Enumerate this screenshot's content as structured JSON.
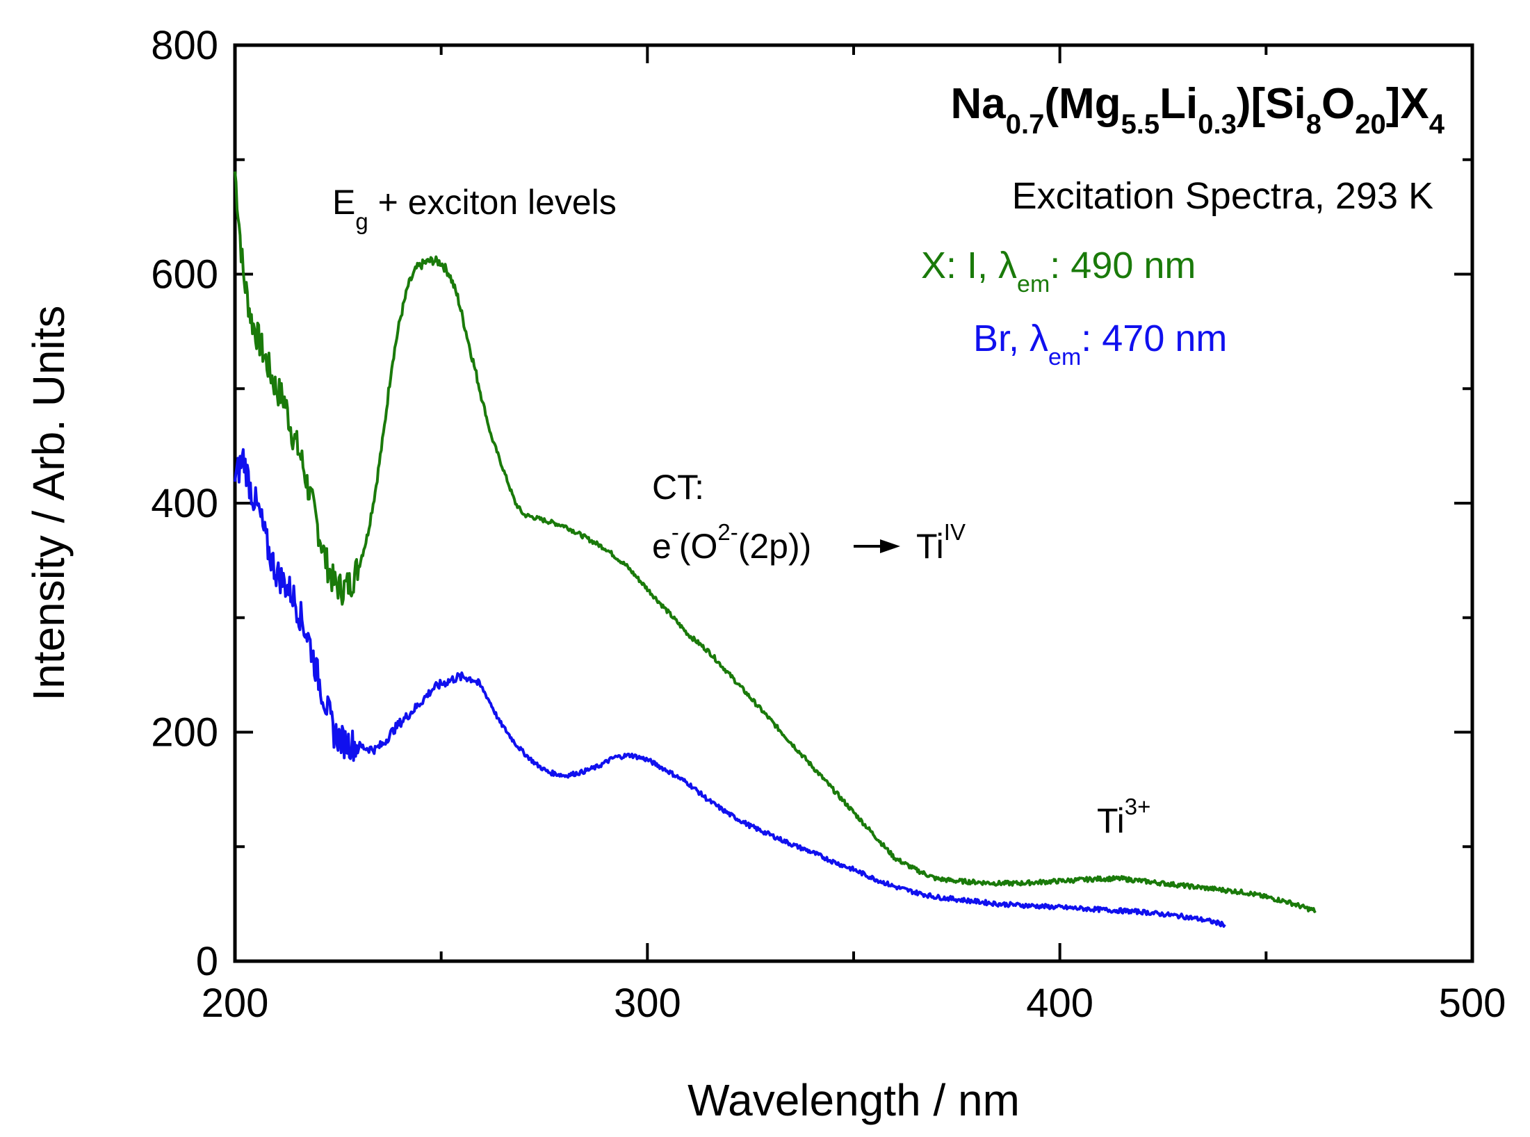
{
  "chart_data": {
    "type": "line",
    "title": "",
    "xlabel": "Wavelength / nm",
    "ylabel": "Intensity / Arb. Units",
    "xlim": [
      200,
      500
    ],
    "ylim": [
      0,
      800
    ],
    "x_ticks": [
      "200",
      "300",
      "400",
      "500"
    ],
    "y_ticks": [
      "0",
      "200",
      "400",
      "600",
      "800"
    ],
    "grid": false,
    "series": [
      {
        "name": "X: I, λem: 490 nm",
        "color": "#1a7a0a",
        "x": [
          200,
          202,
          204,
          206,
          208,
          210,
          212,
          214,
          216,
          218,
          220,
          222,
          224,
          226,
          228,
          230,
          232,
          234,
          236,
          238,
          240,
          242,
          244,
          246,
          248,
          250,
          252,
          254,
          256,
          258,
          260,
          262,
          264,
          266,
          268,
          270,
          275,
          280,
          285,
          290,
          295,
          300,
          305,
          310,
          315,
          320,
          325,
          330,
          335,
          340,
          345,
          350,
          355,
          360,
          365,
          370,
          375,
          380,
          385,
          390,
          395,
          400,
          405,
          410,
          415,
          420,
          425,
          430,
          435,
          440,
          445,
          450,
          455,
          460,
          462
        ],
        "values": [
          690,
          600,
          560,
          540,
          520,
          500,
          490,
          460,
          440,
          410,
          380,
          350,
          330,
          325,
          330,
          345,
          370,
          410,
          460,
          520,
          560,
          590,
          605,
          610,
          612,
          610,
          600,
          580,
          550,
          520,
          490,
          460,
          440,
          420,
          400,
          390,
          385,
          380,
          370,
          360,
          345,
          325,
          305,
          285,
          270,
          250,
          230,
          210,
          190,
          170,
          150,
          130,
          110,
          90,
          80,
          72,
          70,
          69,
          68,
          68,
          69,
          70,
          71,
          72,
          72,
          70,
          68,
          66,
          64,
          62,
          60,
          56,
          52,
          46,
          44
        ]
      },
      {
        "name": "Br, λem: 470 nm",
        "color": "#1010ee",
        "x": [
          200,
          202,
          204,
          206,
          208,
          210,
          212,
          214,
          216,
          218,
          220,
          222,
          224,
          226,
          228,
          230,
          232,
          234,
          236,
          238,
          240,
          242,
          244,
          246,
          248,
          250,
          252,
          254,
          256,
          258,
          260,
          262,
          264,
          266,
          268,
          270,
          273,
          276,
          280,
          284,
          288,
          292,
          296,
          300,
          305,
          310,
          315,
          320,
          325,
          330,
          335,
          340,
          345,
          350,
          355,
          360,
          365,
          370,
          375,
          380,
          385,
          390,
          395,
          400,
          405,
          410,
          415,
          420,
          425,
          430,
          435,
          440
        ],
        "values": [
          420,
          440,
          410,
          390,
          360,
          340,
          330,
          320,
          300,
          280,
          250,
          225,
          200,
          192,
          190,
          188,
          186,
          185,
          190,
          200,
          208,
          215,
          222,
          230,
          238,
          242,
          245,
          248,
          248,
          246,
          238,
          225,
          210,
          200,
          190,
          182,
          172,
          165,
          162,
          165,
          170,
          178,
          180,
          176,
          166,
          155,
          140,
          128,
          118,
          110,
          102,
          95,
          87,
          80,
          72,
          65,
          60,
          56,
          54,
          52,
          50,
          49,
          48,
          47,
          46,
          45,
          44,
          43,
          41,
          39,
          36,
          32
        ]
      }
    ],
    "annotations": {
      "exciton": {
        "main": "E",
        "sub": "g",
        "rest": " + exciton levels"
      },
      "ct_title": "CT:",
      "ct_formula": {
        "e": "e",
        "e_sup": "-",
        "o_open": "(O",
        "o_sup": "2-",
        "rest": "(2p))",
        "ti": "Ti",
        "ti_sup": "IV"
      },
      "ti3": {
        "main": "Ti",
        "sup": "3+"
      }
    },
    "formula": {
      "na": "Na",
      "na_sub": "0.7",
      "mg_open": "(Mg",
      "mg_sub": "5.5",
      "li": "Li",
      "li_sub": "0.3",
      "si_open": ")[Si",
      "si_sub": "8",
      "o": "O",
      "o_sub": "20",
      "x_close": "]X",
      "x_sub": "4"
    },
    "subtitle": "Excitation Spectra, 293 K",
    "legend_entries": [
      {
        "prefix": "X: I, ",
        "lambda": "λ",
        "sub": "em",
        "suffix": ": 490 nm"
      },
      {
        "prefix": "Br, ",
        "lambda": "λ",
        "sub": "em",
        "suffix": ": 470 nm"
      }
    ],
    "legend_position": "top-right"
  }
}
